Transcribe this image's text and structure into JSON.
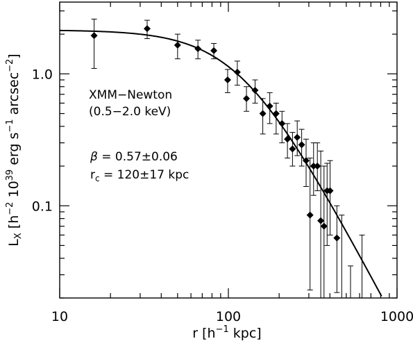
{
  "chart_data": {
    "type": "scatter",
    "x_scale": "log",
    "y_scale": "log",
    "xlim": [
      10,
      1000
    ],
    "ylim": [
      0.02,
      3.5
    ],
    "grid": false,
    "x_tick_labels": [
      {
        "value": 10,
        "label": "10"
      },
      {
        "value": 100,
        "label": "100"
      },
      {
        "value": 1000,
        "label": "1000"
      }
    ],
    "y_tick_labels": [
      {
        "value": 0.1,
        "label": "0.1"
      },
      {
        "value": 1.0,
        "label": "1.0"
      }
    ],
    "xlabel": {
      "main": "r [h",
      "sup": "−1",
      "tail": " kpc]"
    },
    "ylabel": {
      "L": "L",
      "sub": "X",
      "t1": " [h",
      "s1": "−2",
      "t2": " 10",
      "s2": "39",
      "t3": " erg s",
      "s3": "−1",
      "t4": " arcsec",
      "s4": "−2",
      "t5": "]"
    },
    "annotations": {
      "instrument": "XMM−Newton",
      "band": "(0.5−2.0 keV)",
      "beta_symbol": "β",
      "beta_value": " = 0.57±0.06",
      "rc_symbol": "r",
      "rc_sub": "c",
      "rc_value": " = 120±17 kpc"
    },
    "series": [
      {
        "points": [
          {
            "x": 16,
            "y": 1.95,
            "lo": 1.1,
            "hi": 2.6
          },
          {
            "x": 33,
            "y": 2.2,
            "lo": 1.85,
            "hi": 2.55
          },
          {
            "x": 50,
            "y": 1.65,
            "lo": 1.3,
            "hi": 2.0
          },
          {
            "x": 66,
            "y": 1.55,
            "lo": 1.3,
            "hi": 1.8
          },
          {
            "x": 82,
            "y": 1.5,
            "lo": 1.3,
            "hi": 1.7
          },
          {
            "x": 99,
            "y": 0.9,
            "lo": 0.72,
            "hi": 1.08
          },
          {
            "x": 113,
            "y": 1.03,
            "lo": 0.82,
            "hi": 1.25
          },
          {
            "x": 128,
            "y": 0.65,
            "lo": 0.52,
            "hi": 0.8
          },
          {
            "x": 144,
            "y": 0.75,
            "lo": 0.6,
            "hi": 0.9
          },
          {
            "x": 160,
            "y": 0.5,
            "lo": 0.35,
            "hi": 0.65
          },
          {
            "x": 176,
            "y": 0.57,
            "lo": 0.42,
            "hi": 0.72
          },
          {
            "x": 192,
            "y": 0.5,
            "lo": 0.35,
            "hi": 0.6
          },
          {
            "x": 208,
            "y": 0.42,
            "lo": 0.3,
            "hi": 0.52
          },
          {
            "x": 224,
            "y": 0.32,
            "lo": 0.23,
            "hi": 0.42
          },
          {
            "x": 240,
            "y": 0.27,
            "lo": 0.2,
            "hi": 0.36
          },
          {
            "x": 256,
            "y": 0.33,
            "lo": 0.24,
            "hi": 0.44
          },
          {
            "x": 272,
            "y": 0.29,
            "lo": 0.2,
            "hi": 0.38
          },
          {
            "x": 289,
            "y": 0.22,
            "lo": 0.14,
            "hi": 0.32
          },
          {
            "x": 305,
            "y": 0.085,
            "lo": 0.023,
            "hi": 0.23
          },
          {
            "x": 320,
            "y": 0.2,
            "lo": 0.12,
            "hi": 0.3
          },
          {
            "x": 337,
            "y": 0.2,
            "lo": 0.13,
            "hi": 0.3
          },
          {
            "x": 353,
            "y": 0.077,
            "lo": 0.018,
            "hi": 0.26
          },
          {
            "x": 369,
            "y": 0.07,
            "lo": 0.018,
            "hi": 0.2
          },
          {
            "x": 385,
            "y": 0.13,
            "lo": 0.05,
            "hi": 0.21
          },
          {
            "x": 401,
            "y": 0.13,
            "lo": 0.06,
            "hi": 0.22
          },
          {
            "x": 440,
            "y": 0.057,
            "lo": 0.022,
            "hi": 0.1
          }
        ]
      }
    ],
    "model_curve": {
      "type": "beta-model",
      "beta": 0.57,
      "rc": 120,
      "L0": 2.15
    },
    "upper_limits": [
      {
        "x": 470,
        "lo": 0.018,
        "hi": 0.085
      },
      {
        "x": 530,
        "lo": 0.018,
        "hi": 0.035
      },
      {
        "x": 620,
        "lo": 0.018,
        "hi": 0.06
      }
    ]
  }
}
